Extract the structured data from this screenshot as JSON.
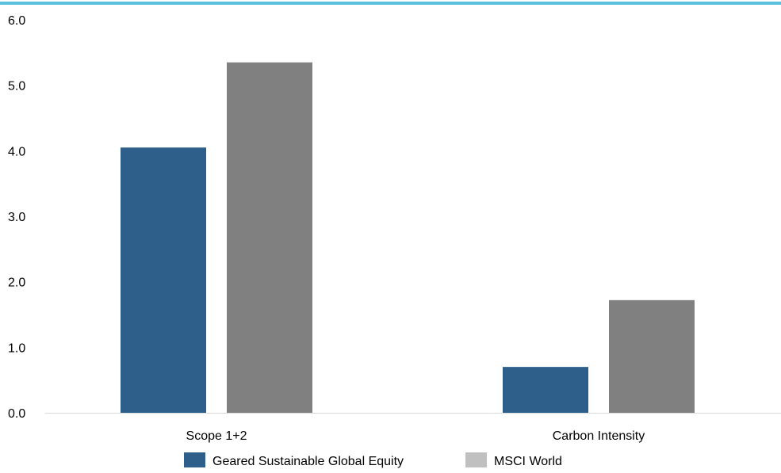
{
  "chart_data": {
    "type": "bar",
    "categories": [
      "Scope 1+2",
      "Carbon Intensity"
    ],
    "series": [
      {
        "name": "Geared Sustainable Global Equity",
        "values": [
          4.05,
          0.7
        ],
        "color": "#2e5f8a"
      },
      {
        "name": "MSCI World",
        "values": [
          5.35,
          1.72
        ],
        "color": "#808080"
      }
    ],
    "legend": {
      "placement": "bottom",
      "items": [
        {
          "label": "Geared Sustainable Global Equity",
          "color": "#2e5f8a"
        },
        {
          "label": "MSCI World",
          "color": "#c0c0c0"
        }
      ]
    },
    "title": "",
    "xlabel": "",
    "ylabel": "",
    "ylim": [
      0,
      6
    ],
    "yticks": [
      "0.0",
      "1.0",
      "2.0",
      "3.0",
      "4.0",
      "5.0",
      "6.0"
    ],
    "grid": false
  },
  "colors": {
    "top_rule": "#5bc0de",
    "axis_line": "#d9d9d9"
  }
}
